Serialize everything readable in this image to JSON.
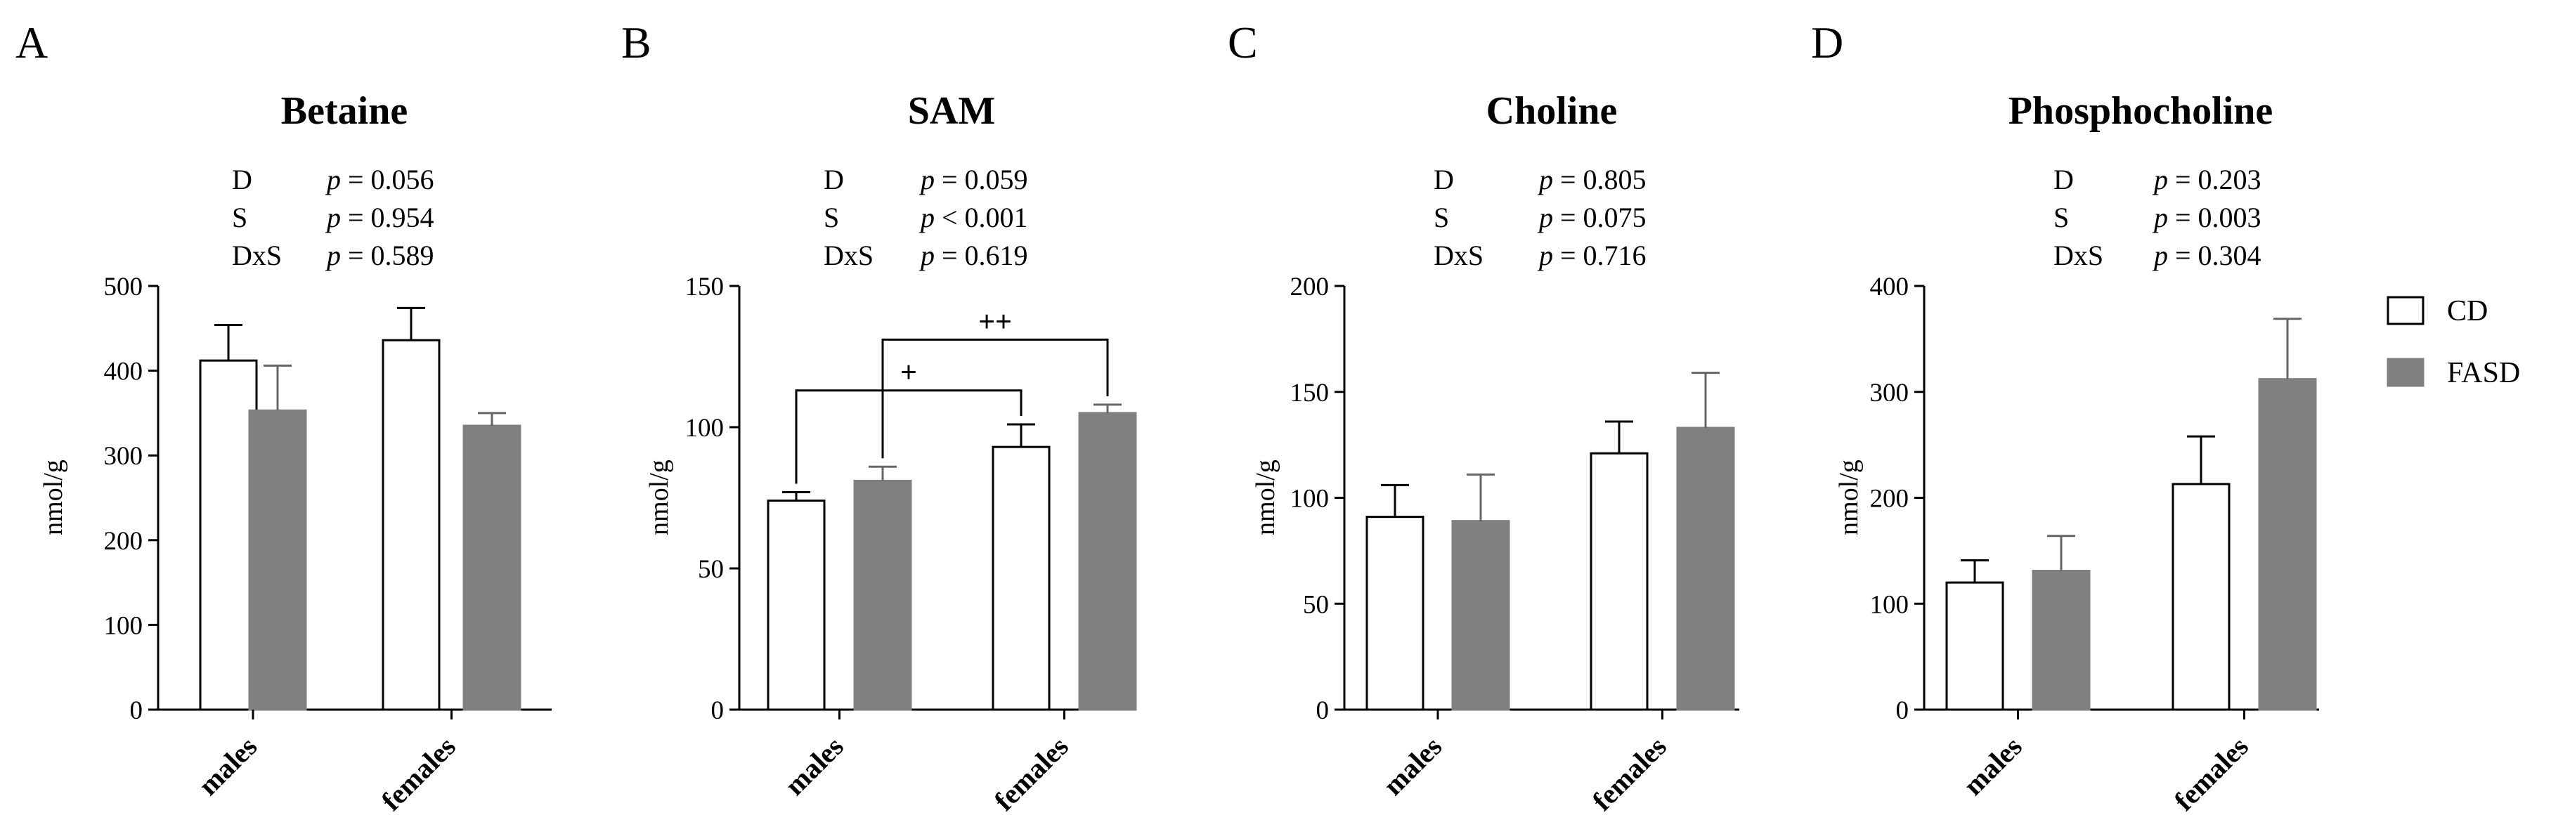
{
  "chart_data": [
    {
      "panel_letter": "A",
      "type": "bar",
      "title": "Betaine",
      "ylabel": "nmol/g",
      "ylim": [
        0,
        500
      ],
      "yticks": [
        0,
        100,
        200,
        300,
        400,
        500
      ],
      "categories": [
        "males",
        "females"
      ],
      "series": [
        {
          "name": "CD",
          "values": [
            412,
            436
          ],
          "errors": [
            42,
            38
          ]
        },
        {
          "name": "FASD",
          "values": [
            353,
            335
          ],
          "errors": [
            53,
            15
          ]
        }
      ],
      "stats": [
        {
          "label": "D",
          "p": "p",
          "rel": " = 0.056"
        },
        {
          "label": "S",
          "p": "p",
          "rel": " = 0.954"
        },
        {
          "label": "DxS",
          "p": "p",
          "rel": " = 0.589"
        }
      ],
      "brackets": []
    },
    {
      "panel_letter": "B",
      "type": "bar",
      "title": "SAM",
      "ylabel": "nmol/g",
      "ylim": [
        0,
        150
      ],
      "yticks": [
        0,
        50,
        100,
        150
      ],
      "categories": [
        "males",
        "females"
      ],
      "series": [
        {
          "name": "CD",
          "values": [
            74,
            93
          ],
          "errors": [
            3,
            8
          ]
        },
        {
          "name": "FASD",
          "values": [
            81,
            105
          ],
          "errors": [
            5,
            3
          ]
        }
      ],
      "stats": [
        {
          "label": "D",
          "p": "p",
          "rel": " = 0.059"
        },
        {
          "label": "S",
          "p": "p",
          "rel": " < 0.001"
        },
        {
          "label": "DxS",
          "p": "p",
          "rel": " = 0.619"
        }
      ],
      "brackets": [
        {
          "from": [
            0,
            0
          ],
          "to": [
            1,
            0
          ],
          "y": 113,
          "label": "+"
        },
        {
          "from": [
            0,
            1
          ],
          "to": [
            1,
            1
          ],
          "y": 131,
          "label": "++"
        }
      ]
    },
    {
      "panel_letter": "C",
      "type": "bar",
      "title": "Choline",
      "ylabel": "nmol/g",
      "ylim": [
        0,
        200
      ],
      "yticks": [
        0,
        50,
        100,
        150,
        200
      ],
      "categories": [
        "males",
        "females"
      ],
      "series": [
        {
          "name": "CD",
          "values": [
            91,
            121
          ],
          "errors": [
            15,
            15
          ]
        },
        {
          "name": "FASD",
          "values": [
            89,
            133
          ],
          "errors": [
            22,
            26
          ]
        }
      ],
      "stats": [
        {
          "label": "D",
          "p": "p",
          "rel": " = 0.805"
        },
        {
          "label": "S",
          "p": "p",
          "rel": " = 0.075"
        },
        {
          "label": "DxS",
          "p": "p",
          "rel": " = 0.716"
        }
      ],
      "brackets": []
    },
    {
      "panel_letter": "D",
      "type": "bar",
      "title": "Phosphocholine",
      "ylabel": "nmol/g",
      "ylim": [
        0,
        400
      ],
      "yticks": [
        0,
        100,
        200,
        300,
        400
      ],
      "categories": [
        "males",
        "females"
      ],
      "series": [
        {
          "name": "CD",
          "values": [
            120,
            213
          ],
          "errors": [
            21,
            45
          ]
        },
        {
          "name": "FASD",
          "values": [
            131,
            312
          ],
          "errors": [
            33,
            57
          ]
        }
      ],
      "stats": [
        {
          "label": "D",
          "p": "p",
          "rel": " = 0.203"
        },
        {
          "label": "S",
          "p": "p",
          "rel": " = 0.003"
        },
        {
          "label": "DxS",
          "p": "p",
          "rel": " = 0.304"
        }
      ],
      "brackets": []
    }
  ],
  "legend": [
    {
      "name": "CD",
      "fill": "#ffffff"
    },
    {
      "name": "FASD",
      "fill": "#808080"
    }
  ],
  "colors": {
    "cd_fill": "#ffffff",
    "fasd_fill": "#808080",
    "stroke": "#000000"
  }
}
